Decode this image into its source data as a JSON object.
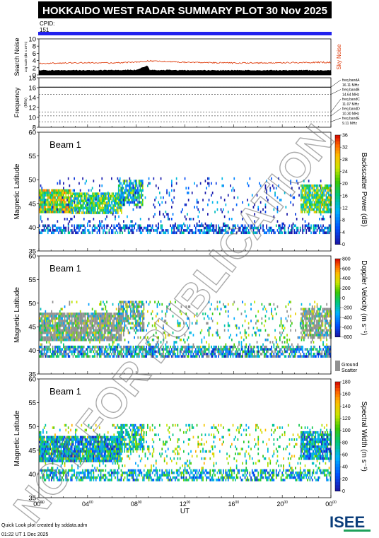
{
  "header": {
    "title": "HOKKAIDO WEST RADAR SUMMARY PLOT",
    "date": "30 Nov 2025",
    "cpid_label": "CPID:",
    "cpid_value": "151"
  },
  "colors": {
    "header_bg": "#000000",
    "cpid_bar": "#2222ee",
    "noise_line": "#dd3300",
    "ground_scatter": "#909090"
  },
  "watermark": "NOT FOR PUBLICATION",
  "footer": {
    "line1": "Quick Look plot created by sddata.adm",
    "line2": "01:22 UT  1 Dec 2025"
  },
  "logo_text": "ISEE",
  "chart_data": [
    {
      "type": "line",
      "id": "noise",
      "ylabel": "Search Noise",
      "yunit": "Log scale (dB x 10^n)",
      "ylim": [
        0,
        10
      ],
      "yticks": [
        "0",
        "2",
        "4",
        "6",
        "8",
        "10"
      ],
      "right_label": "Sky Noise",
      "series": [
        {
          "name": "Sky Noise",
          "x": [
            0,
            2,
            4,
            6,
            8,
            9,
            12,
            16,
            20,
            24
          ],
          "values": [
            3.2,
            3.3,
            3.4,
            3.3,
            3.6,
            3.9,
            3.5,
            3.3,
            3.4,
            3.5
          ]
        },
        {
          "name": "Search Noise",
          "x": [
            0,
            4,
            8,
            8.9,
            9.1,
            12,
            16,
            20,
            24
          ],
          "values": [
            1.3,
            1.3,
            1.4,
            2.6,
            1.4,
            1.3,
            1.3,
            1.3,
            1.3
          ]
        }
      ]
    },
    {
      "type": "line",
      "id": "frequency",
      "ylabel": "Frequency",
      "yunit": "(MHz)",
      "ylim": [
        8,
        18
      ],
      "yticks": [
        "8",
        "10",
        "12",
        "14",
        "16",
        "18"
      ],
      "value": 16.1,
      "freq_bands": [
        {
          "label": "freq bandA",
          "value": "16.11 MHz",
          "freq": 16.11
        },
        {
          "label": "freq bandB",
          "value": "14.64 MHz",
          "freq": 14.64
        },
        {
          "label": "freq bandC",
          "value": "11.07 MHz",
          "freq": 11.07
        },
        {
          "label": "freq bandD",
          "value": "10.30 MHz",
          "freq": 10.3
        },
        {
          "label": "freq bandE",
          "value": "9.11 MHz",
          "freq": 9.11
        }
      ]
    },
    {
      "type": "heatmap",
      "id": "power",
      "title": "Beam  1",
      "ylabel": "Magnetic Latitude",
      "ylim": [
        35,
        60
      ],
      "yticks": [
        "35",
        "40",
        "45",
        "50",
        "55",
        "60"
      ],
      "colorbar_label": "Backscatter Power (dB)",
      "colorbar_range": [
        0,
        36
      ],
      "colorbar_ticks": [
        "0",
        "4",
        "8",
        "12",
        "16",
        "20",
        "24",
        "28",
        "32",
        "36"
      ],
      "regions": [
        {
          "x": [
            0,
            2.6
          ],
          "lat": [
            43.0,
            48.0
          ],
          "mean": 0.65,
          "density": 0.95
        },
        {
          "x": [
            2.6,
            6.8
          ],
          "lat": [
            43.0,
            47.3
          ],
          "mean": 0.5,
          "density": 0.85
        },
        {
          "x": [
            6.5,
            8.5
          ],
          "lat": [
            44.5,
            50.0
          ],
          "mean": 0.4,
          "density": 0.7
        },
        {
          "x": [
            0,
            24
          ],
          "lat": [
            38.6,
            40.6
          ],
          "mean": 0.15,
          "density": 0.55
        },
        {
          "x": [
            0,
            24
          ],
          "lat": [
            40.6,
            50.5
          ],
          "mean": 0.08,
          "density": 0.07
        },
        {
          "x": [
            21.5,
            24
          ],
          "lat": [
            43.0,
            49.0
          ],
          "mean": 0.55,
          "density": 0.85
        }
      ]
    },
    {
      "type": "heatmap",
      "id": "velocity",
      "title": "Beam  1",
      "ylabel": "Magnetic Latitude",
      "ylim": [
        35,
        60
      ],
      "yticks": [
        "35",
        "40",
        "45",
        "50",
        "55",
        "60"
      ],
      "colorbar_label": "Doppler Velocity (m s⁻¹)",
      "colorbar_range": [
        -800,
        800
      ],
      "colorbar_ticks": [
        "-800",
        "-600",
        "-400",
        "-200",
        "0",
        "200",
        "400",
        "600",
        "800"
      ],
      "ground_scatter_label": [
        "Ground",
        "Scatter"
      ],
      "regions": [
        {
          "x": [
            0,
            6.8
          ],
          "lat": [
            42.5,
            48.0
          ],
          "mean": 0.5,
          "density": 0.9,
          "gs": 0.75
        },
        {
          "x": [
            6.5,
            8.6
          ],
          "lat": [
            44.5,
            50.5
          ],
          "mean": 0.45,
          "density": 0.65,
          "gs": 0.5
        },
        {
          "x": [
            0,
            24
          ],
          "lat": [
            38.6,
            41.0
          ],
          "mean": 0.3,
          "density": 0.7,
          "gs": 0.2
        },
        {
          "x": [
            0,
            24
          ],
          "lat": [
            41.0,
            50.5
          ],
          "mean": 0.5,
          "density": 0.12,
          "gs": 0.2
        },
        {
          "x": [
            21.5,
            24
          ],
          "lat": [
            43.0,
            49.0
          ],
          "mean": 0.5,
          "density": 0.8,
          "gs": 0.7
        }
      ]
    },
    {
      "type": "heatmap",
      "id": "width",
      "title": "Beam  1",
      "ylabel": "Magnetic Latitude",
      "ylim": [
        35,
        60
      ],
      "yticks": [
        "35",
        "40",
        "45",
        "50",
        "55",
        "60"
      ],
      "colorbar_label": "Spectral Width (m s⁻¹)",
      "colorbar_range": [
        0,
        180
      ],
      "colorbar_ticks": [
        "0",
        "20",
        "40",
        "60",
        "80",
        "100",
        "120",
        "140",
        "160",
        "180"
      ],
      "xlabel": "UT",
      "xlim": [
        0,
        24
      ],
      "xticks": [
        {
          "v": 0,
          "h": "00",
          "m": "00"
        },
        {
          "v": 4,
          "h": "04",
          "m": "00"
        },
        {
          "v": 8,
          "h": "08",
          "m": "00"
        },
        {
          "v": 12,
          "h": "12",
          "m": "00"
        },
        {
          "v": 16,
          "h": "16",
          "m": "00"
        },
        {
          "v": 20,
          "h": "20",
          "m": "00"
        },
        {
          "v": 24,
          "h": "00",
          "m": "00"
        }
      ],
      "regions": [
        {
          "x": [
            0,
            6.8
          ],
          "lat": [
            42.5,
            48.0
          ],
          "mean": 0.3,
          "density": 0.9
        },
        {
          "x": [
            6.5,
            8.6
          ],
          "lat": [
            44.5,
            50.5
          ],
          "mean": 0.4,
          "density": 0.65
        },
        {
          "x": [
            0,
            24
          ],
          "lat": [
            38.6,
            41.0
          ],
          "mean": 0.35,
          "density": 0.55
        },
        {
          "x": [
            0,
            24
          ],
          "lat": [
            41.0,
            50.5
          ],
          "mean": 0.55,
          "density": 0.13
        },
        {
          "x": [
            21.5,
            24
          ],
          "lat": [
            43.0,
            49.0
          ],
          "mean": 0.3,
          "density": 0.85
        }
      ]
    }
  ]
}
